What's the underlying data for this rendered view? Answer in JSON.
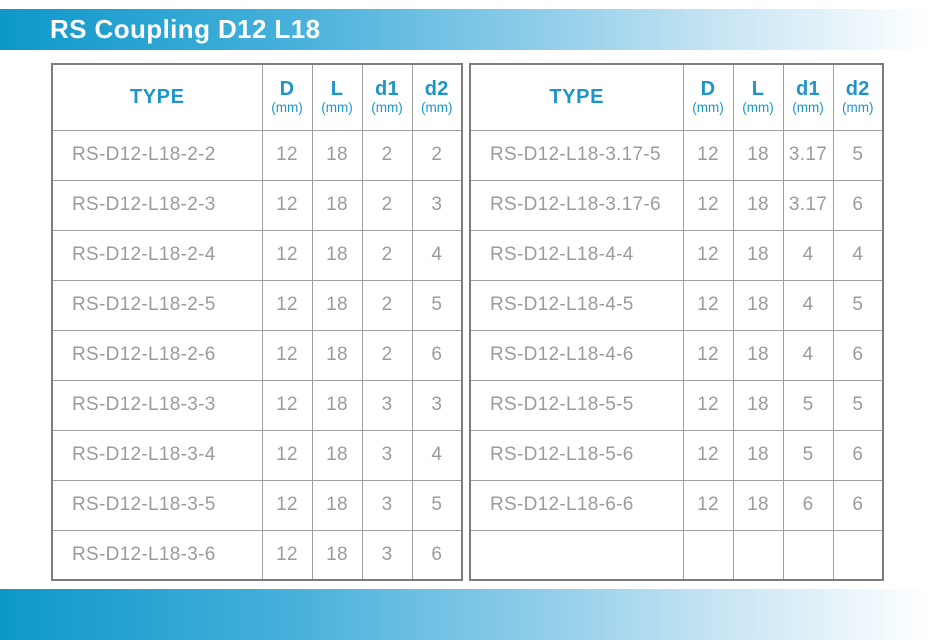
{
  "title": "RS Coupling D12 L18",
  "colors": {
    "accent_blue": "#1d95c8",
    "bar_gradient_start": "#0d98ca",
    "bar_gradient_end": "#ffffff",
    "data_text": "#9b9b9b",
    "grid_border": "#9e9e9e",
    "outer_border": "#7c7c7c"
  },
  "columns": [
    {
      "label": "TYPE",
      "unit": ""
    },
    {
      "label": "D",
      "unit": "(mm)"
    },
    {
      "label": "L",
      "unit": "(mm)"
    },
    {
      "label": "d1",
      "unit": "(mm)"
    },
    {
      "label": "d2",
      "unit": "(mm)"
    }
  ],
  "tables": [
    {
      "rows": [
        [
          "RS-D12-L18-2-2",
          "12",
          "18",
          "2",
          "2"
        ],
        [
          "RS-D12-L18-2-3",
          "12",
          "18",
          "2",
          "3"
        ],
        [
          "RS-D12-L18-2-4",
          "12",
          "18",
          "2",
          "4"
        ],
        [
          "RS-D12-L18-2-5",
          "12",
          "18",
          "2",
          "5"
        ],
        [
          "RS-D12-L18-2-6",
          "12",
          "18",
          "2",
          "6"
        ],
        [
          "RS-D12-L18-3-3",
          "12",
          "18",
          "3",
          "3"
        ],
        [
          "RS-D12-L18-3-4",
          "12",
          "18",
          "3",
          "4"
        ],
        [
          "RS-D12-L18-3-5",
          "12",
          "18",
          "3",
          "5"
        ],
        [
          "RS-D12-L18-3-6",
          "12",
          "18",
          "3",
          "6"
        ]
      ]
    },
    {
      "rows": [
        [
          "RS-D12-L18-3.17-5",
          "12",
          "18",
          "3.17",
          "5"
        ],
        [
          "RS-D12-L18-3.17-6",
          "12",
          "18",
          "3.17",
          "6"
        ],
        [
          "RS-D12-L18-4-4",
          "12",
          "18",
          "4",
          "4"
        ],
        [
          "RS-D12-L18-4-5",
          "12",
          "18",
          "4",
          "5"
        ],
        [
          "RS-D12-L18-4-6",
          "12",
          "18",
          "4",
          "6"
        ],
        [
          "RS-D12-L18-5-5",
          "12",
          "18",
          "5",
          "5"
        ],
        [
          "RS-D12-L18-5-6",
          "12",
          "18",
          "5",
          "6"
        ],
        [
          "RS-D12-L18-6-6",
          "12",
          "18",
          "6",
          "6"
        ],
        [
          "",
          "",
          "",
          "",
          ""
        ]
      ]
    }
  ]
}
